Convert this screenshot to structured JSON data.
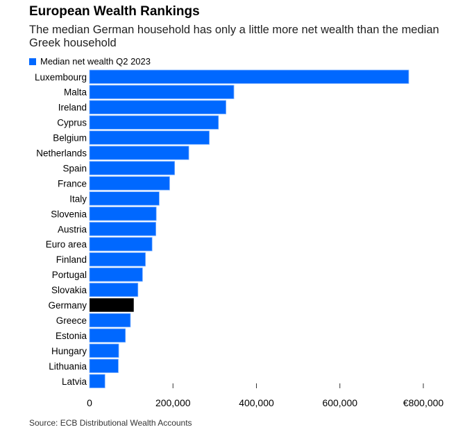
{
  "title": "European Wealth Rankings",
  "subtitle": "The median German household has only a little more net wealth than the median Greek household",
  "source": "Source: ECB Distributional Wealth Accounts",
  "colors": {
    "bar": "#0068ff",
    "highlight": "#000000"
  },
  "chart_data": {
    "type": "bar",
    "orientation": "horizontal",
    "legend": {
      "label": "Median net wealth Q2 2023",
      "position": "top-left"
    },
    "categories": [
      "Luxembourg",
      "Malta",
      "Ireland",
      "Cyprus",
      "Belgium",
      "Netherlands",
      "Spain",
      "France",
      "Italy",
      "Slovenia",
      "Austria",
      "Euro area",
      "Finland",
      "Portugal",
      "Slovakia",
      "Germany",
      "Greece",
      "Estonia",
      "Hungary",
      "Lithuania",
      "Latvia"
    ],
    "values": [
      765000,
      346000,
      327000,
      309000,
      287000,
      238000,
      204000,
      192000,
      167000,
      160000,
      159000,
      150000,
      134000,
      127000,
      116000,
      106000,
      98000,
      86000,
      70000,
      69000,
      37000
    ],
    "highlight": "Germany",
    "xlim": [
      0,
      800000
    ],
    "xticks": [
      0,
      200000,
      400000,
      600000,
      800000
    ],
    "xtick_labels": [
      "0",
      "200,000",
      "400,000",
      "600,000",
      "€800,000"
    ],
    "grid": false
  }
}
